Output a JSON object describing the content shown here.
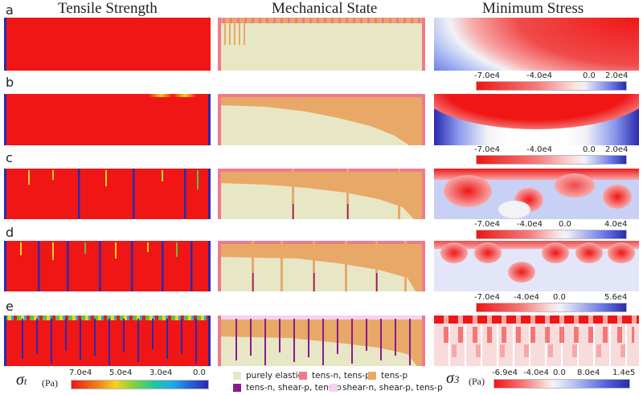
{
  "columns": {
    "tensile": "Tensile Strength",
    "mechanical": "Mechanical State",
    "stress": "Minimum Stress"
  },
  "rows": [
    "a",
    "b",
    "c",
    "d",
    "e"
  ],
  "colors": {
    "red": "#f01616",
    "elastic": "#e8e7c5",
    "tens_n_tens_p": "#f07a8c",
    "tens_p": "#e8a868",
    "tens_n_shear_p_tens_p": "#8b1a8c",
    "shear_n_shear_p_tens_p": "#f8d2ec",
    "fracture": "#2a2ab0"
  },
  "stress_bars": [
    {
      "row": "a",
      "ticks": [
        "-7.0e4",
        "-4.0e4",
        "0.0",
        "2.0e4"
      ]
    },
    {
      "row": "b",
      "ticks": [
        "-7.0e4",
        "-4.0e4",
        "0.0",
        "2.0e4"
      ]
    },
    {
      "row": "c",
      "ticks": [
        "-7.0e4",
        "-4.0e4",
        "0.0",
        "4.0e4"
      ]
    },
    {
      "row": "d",
      "ticks": [
        "-7.0e4",
        "-4.0e4",
        "0.0",
        "5.6e4"
      ]
    },
    {
      "row": "e",
      "ticks": [
        "-6.9e4",
        "-4.0e4",
        "0.0",
        "8.0e4",
        "1.4e5"
      ]
    }
  ],
  "tensile_bar": {
    "symbol": "σ",
    "subscript": "t",
    "unit": "(Pa)",
    "ticks": [
      "7.0e4",
      "5.0e4",
      "3.0e4",
      "0.0"
    ]
  },
  "stress_symbol": {
    "symbol": "σ",
    "subscript": "3",
    "unit": "(Pa)"
  },
  "legend": [
    {
      "label": "purely elastic",
      "color": "#e8e7c5"
    },
    {
      "label": "tens-n, tens-p",
      "color": "#f07a8c"
    },
    {
      "label": "tens-p",
      "color": "#e8a868"
    },
    {
      "label": "tens-n, shear-p, tens-p",
      "color": "#8b1a8c"
    },
    {
      "label": "shear-n, shear-p, tens-p",
      "color": "#f8d2ec"
    }
  ]
}
